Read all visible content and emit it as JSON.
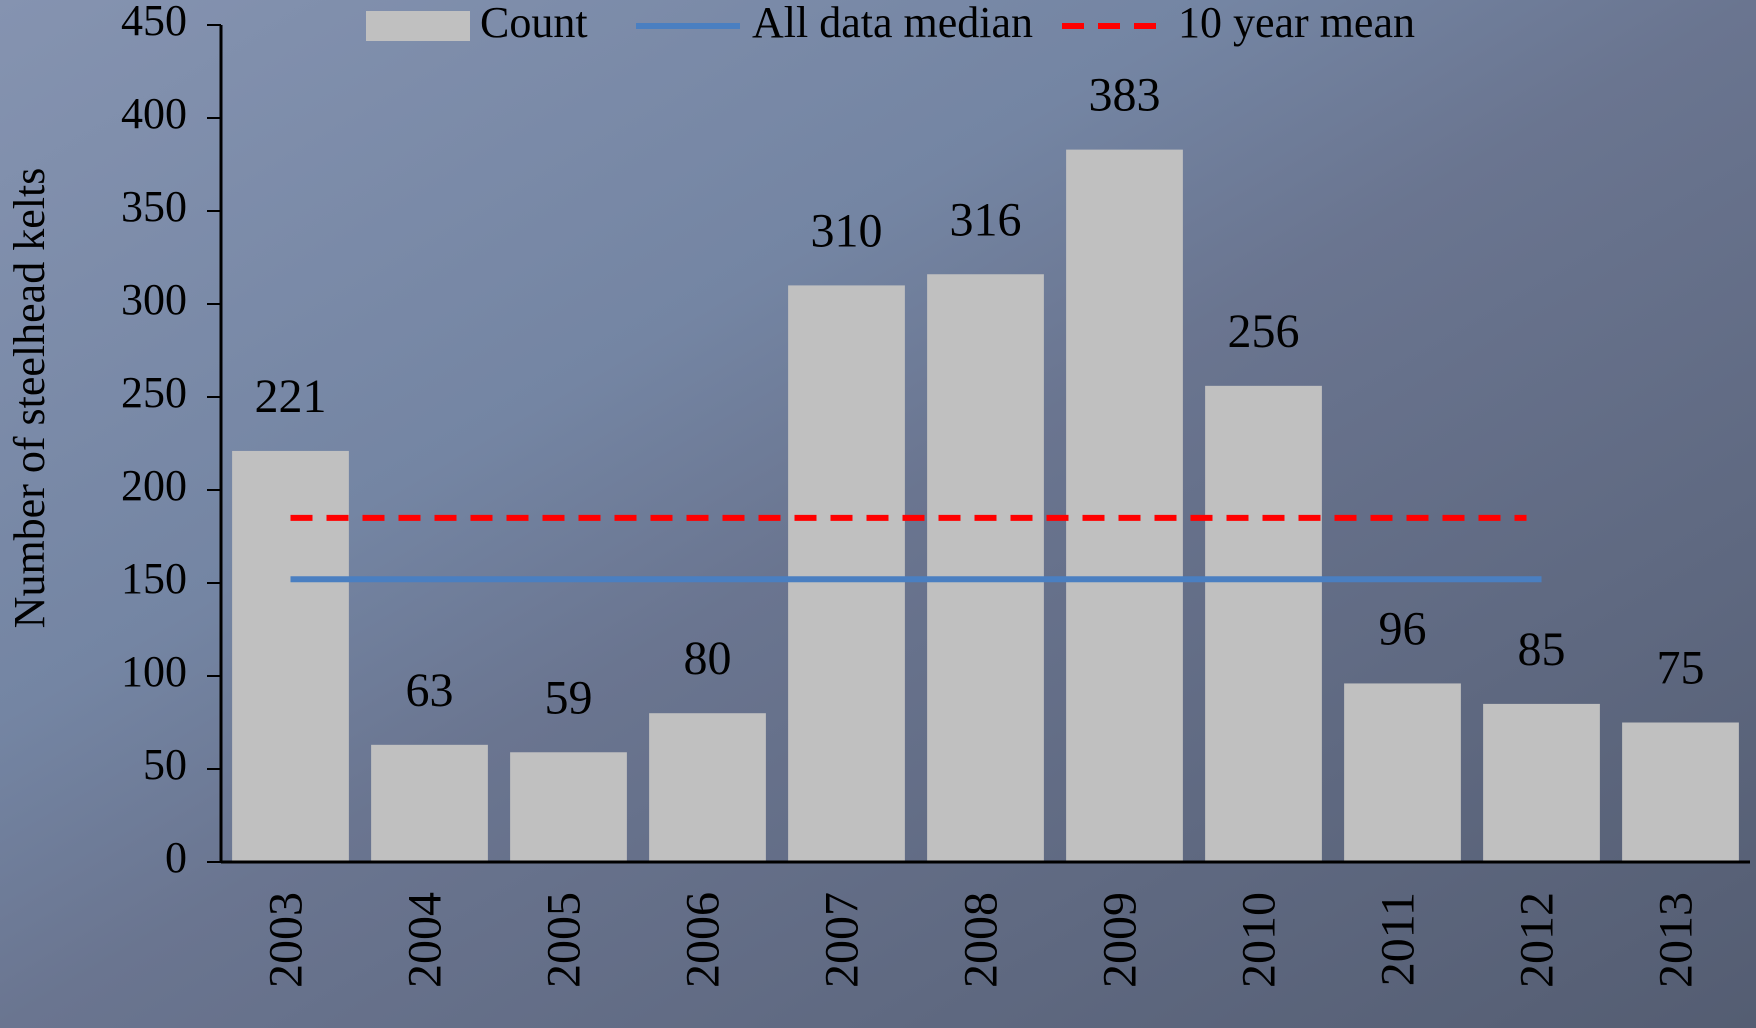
{
  "chart_data": {
    "type": "bar",
    "y_label": "Number of steelhead kelts",
    "categories": [
      "2003",
      "2004",
      "2005",
      "2006",
      "2007",
      "2008",
      "2009",
      "2010",
      "2011",
      "2012",
      "2013"
    ],
    "series": [
      {
        "name": "Count",
        "color": "#c0c0c0",
        "values": [
          221,
          63,
          59,
          80,
          310,
          316,
          383,
          256,
          96,
          85,
          75
        ]
      }
    ],
    "lines": [
      {
        "name": "All data median",
        "color": "#4a7fc1",
        "value": 152,
        "dashed": false
      },
      {
        "name": "10 year mean",
        "color": "#ff0000",
        "value": 185,
        "dashed": true
      }
    ],
    "ylim": [
      0,
      450
    ],
    "yticks": [
      0,
      50,
      100,
      150,
      200,
      250,
      300,
      350,
      400,
      450
    ]
  }
}
